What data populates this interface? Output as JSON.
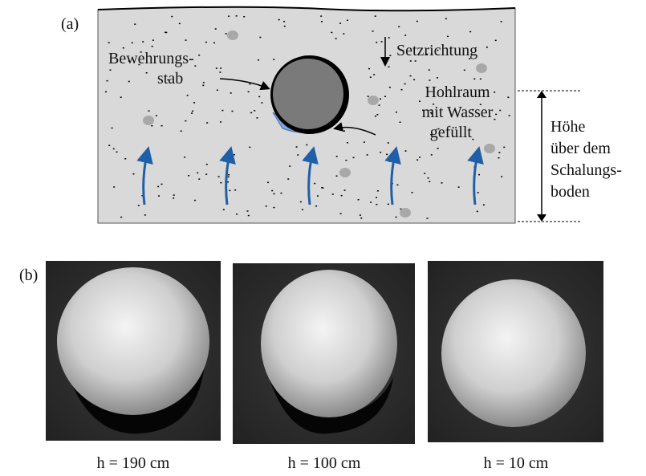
{
  "panel_a": {
    "label": "(a)",
    "rebar_label": [
      "Bewehrungs-",
      "stab"
    ],
    "settlement_label": "Setzrichtung",
    "void_label": [
      "Hohlraum",
      "mit Wasser",
      "gefüllt"
    ],
    "height_label": [
      "Höhe",
      "über dem",
      "Schalungs-",
      "boden"
    ]
  },
  "panel_b": {
    "label": "(b)",
    "photos": [
      {
        "caption": "h = 190 cm"
      },
      {
        "caption": "h = 100 cm"
      },
      {
        "caption": "h = 10 cm"
      }
    ]
  }
}
